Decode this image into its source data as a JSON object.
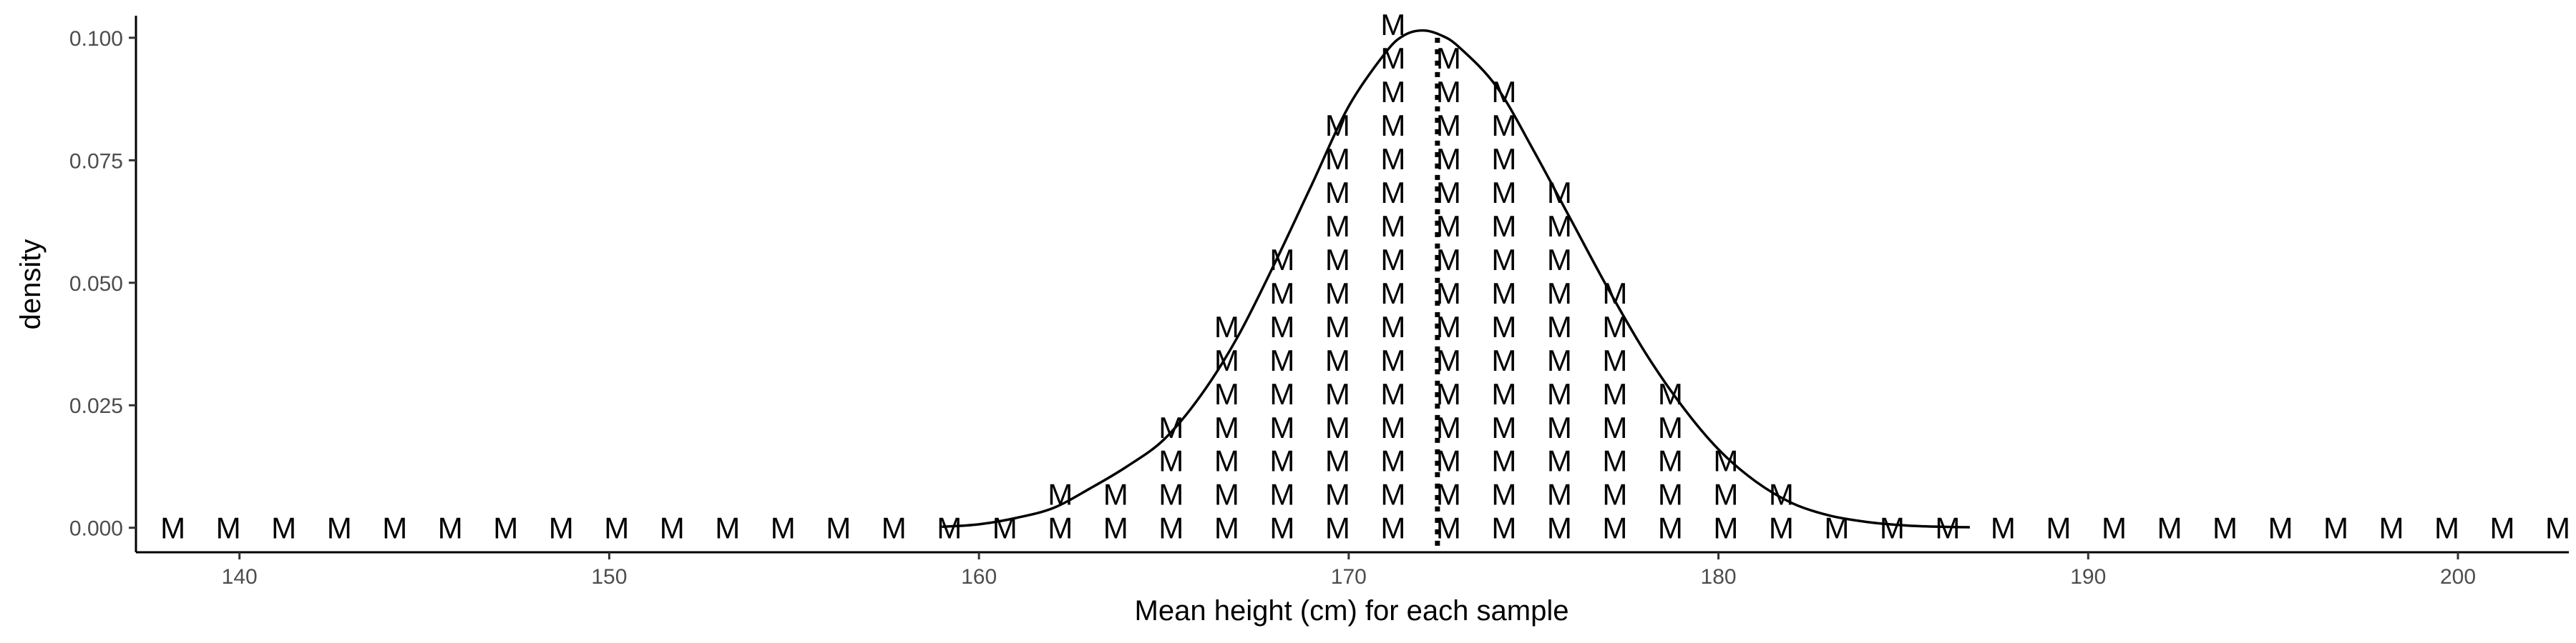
{
  "chart_data": {
    "type": "scatter",
    "title": "",
    "xlabel": "Mean height (cm) for each sample",
    "ylabel": "density",
    "xlim": [
      137.2,
      203
    ],
    "ylim": [
      -0.005,
      0.1045
    ],
    "x_ticks": [
      140,
      150,
      160,
      170,
      180,
      190,
      200
    ],
    "y_ticks": [
      0,
      0.025,
      0.05,
      0.075,
      0.1
    ],
    "x_tick_labels": [
      "140",
      "150",
      "160",
      "170",
      "180",
      "190",
      "200"
    ],
    "y_tick_labels": [
      "0.000",
      "0.025",
      "0.050",
      "0.075",
      "0.100"
    ],
    "grid": false,
    "legend": "none",
    "marker_label": "M",
    "marker_stack_step": 0.00685,
    "mean_line_x": 172.4,
    "stacks": [
      {
        "x": 138.2,
        "count": 1
      },
      {
        "x": 139.7,
        "count": 1
      },
      {
        "x": 141.2,
        "count": 1
      },
      {
        "x": 142.7,
        "count": 1
      },
      {
        "x": 144.2,
        "count": 1
      },
      {
        "x": 145.7,
        "count": 1
      },
      {
        "x": 147.2,
        "count": 1
      },
      {
        "x": 148.7,
        "count": 1
      },
      {
        "x": 150.2,
        "count": 1
      },
      {
        "x": 151.7,
        "count": 1
      },
      {
        "x": 153.2,
        "count": 1
      },
      {
        "x": 154.7,
        "count": 1
      },
      {
        "x": 156.2,
        "count": 1
      },
      {
        "x": 157.7,
        "count": 1
      },
      {
        "x": 159.2,
        "count": 1
      },
      {
        "x": 160.7,
        "count": 1
      },
      {
        "x": 162.2,
        "count": 2
      },
      {
        "x": 163.7,
        "count": 2
      },
      {
        "x": 165.2,
        "count": 4
      },
      {
        "x": 166.7,
        "count": 7
      },
      {
        "x": 168.2,
        "count": 9
      },
      {
        "x": 169.7,
        "count": 13
      },
      {
        "x": 171.2,
        "count": 16
      },
      {
        "x": 172.7,
        "count": 15
      },
      {
        "x": 174.2,
        "count": 14
      },
      {
        "x": 175.7,
        "count": 11
      },
      {
        "x": 177.2,
        "count": 8
      },
      {
        "x": 178.7,
        "count": 5
      },
      {
        "x": 180.2,
        "count": 3
      },
      {
        "x": 181.7,
        "count": 2
      },
      {
        "x": 183.2,
        "count": 1
      },
      {
        "x": 184.7,
        "count": 1
      },
      {
        "x": 186.2,
        "count": 1
      },
      {
        "x": 187.7,
        "count": 1
      },
      {
        "x": 189.2,
        "count": 1
      },
      {
        "x": 190.7,
        "count": 1
      },
      {
        "x": 192.2,
        "count": 1
      },
      {
        "x": 193.7,
        "count": 1
      },
      {
        "x": 195.2,
        "count": 1
      },
      {
        "x": 196.7,
        "count": 1
      },
      {
        "x": 198.2,
        "count": 1
      },
      {
        "x": 199.7,
        "count": 1
      },
      {
        "x": 201.2,
        "count": 1
      },
      {
        "x": 202.7,
        "count": 1
      }
    ],
    "density_curve": {
      "x": [
        159,
        160,
        161,
        162,
        163,
        164,
        165,
        166,
        167,
        168,
        169,
        170,
        171,
        171.5,
        172,
        172.5,
        173,
        174,
        175,
        176,
        177,
        178,
        179,
        180,
        181,
        182,
        183,
        184,
        185,
        186,
        186.8
      ],
      "y": [
        0.0002,
        0.0007,
        0.002,
        0.004,
        0.008,
        0.0125,
        0.018,
        0.027,
        0.039,
        0.054,
        0.07,
        0.086,
        0.097,
        0.1005,
        0.1015,
        0.1005,
        0.098,
        0.09,
        0.077,
        0.063,
        0.049,
        0.036,
        0.025,
        0.016,
        0.0095,
        0.005,
        0.0025,
        0.0012,
        0.0005,
        0.0002,
        0.0001
      ]
    }
  }
}
